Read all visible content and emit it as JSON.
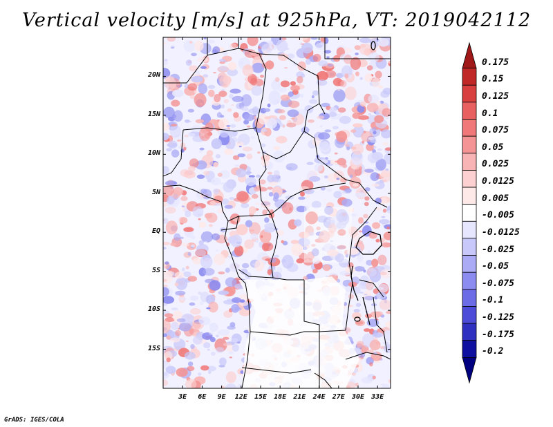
{
  "title": "Vertical velocity [m/s] at 925hPa, VT: 2019042112",
  "credit": "GrADS: IGES/COLA",
  "chart_data": {
    "type": "heatmap",
    "title": "Vertical velocity [m/s] at 925hPa, VT: 2019042112",
    "variable": "Vertical velocity",
    "units": "m/s",
    "level": "925hPa",
    "valid_time": "2019042112",
    "lon_range": [
      0,
      35
    ],
    "lat_range": [
      -20,
      25
    ],
    "lat_ticks": [
      "20N",
      "15N",
      "10N",
      "5N",
      "EQ",
      "5S",
      "10S",
      "15S"
    ],
    "lat_values": [
      20,
      15,
      10,
      5,
      0,
      -5,
      -10,
      -15
    ],
    "lon_ticks": [
      "3E",
      "6E",
      "9E",
      "12E",
      "15E",
      "18E",
      "21E",
      "24E",
      "27E",
      "30E",
      "33E"
    ],
    "lon_values": [
      3,
      6,
      9,
      12,
      15,
      18,
      21,
      24,
      27,
      30,
      33
    ],
    "colorbar_labels": [
      "0.175",
      "0.15",
      "0.125",
      "0.1",
      "0.075",
      "0.05",
      "0.025",
      "0.0125",
      "0.005",
      "-0.005",
      "-0.0125",
      "-0.025",
      "-0.05",
      "-0.075",
      "-0.1",
      "-0.125",
      "-0.175",
      "-0.2"
    ],
    "colorbar_colors": [
      "#a01818",
      "#c02828",
      "#d84040",
      "#e86060",
      "#f07878",
      "#f49494",
      "#f8b4b4",
      "#fcd0d0",
      "#fee8e8",
      "#ffffff",
      "#e6e6ff",
      "#c8c8fa",
      "#aaaaf5",
      "#8c8cf0",
      "#6c6ce6",
      "#4c4cd8",
      "#3030c0",
      "#1010a0",
      "#000080"
    ]
  }
}
